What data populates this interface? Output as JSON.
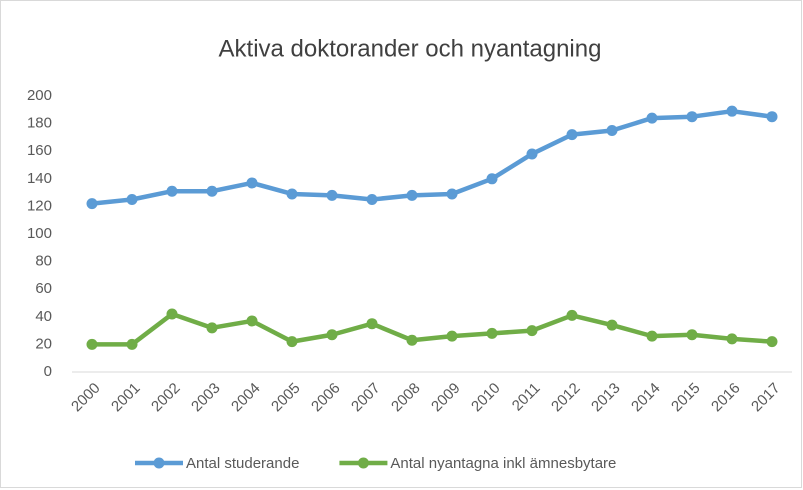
{
  "chart_data": {
    "type": "line",
    "title": "Aktiva doktorander och nyantagning",
    "categories": [
      "2000",
      "2001",
      "2002",
      "2003",
      "2004",
      "2005",
      "2006",
      "2007",
      "2008",
      "2009",
      "2010",
      "2011",
      "2012",
      "2013",
      "2014",
      "2015",
      "2016",
      "2017"
    ],
    "series": [
      {
        "name": "Antal studerande",
        "color": "#5b9bd5",
        "values": [
          122,
          125,
          131,
          131,
          137,
          129,
          128,
          125,
          128,
          129,
          140,
          158,
          172,
          175,
          184,
          185,
          189,
          185
        ]
      },
      {
        "name": "Antal nyantagna inkl ämnesbytare",
        "color": "#70ad47",
        "values": [
          20,
          20,
          42,
          32,
          37,
          22,
          27,
          35,
          23,
          26,
          28,
          30,
          41,
          34,
          26,
          27,
          24,
          22
        ]
      }
    ],
    "ylim": [
      0,
      200
    ],
    "yticks": [
      0,
      20,
      40,
      60,
      80,
      100,
      120,
      140,
      160,
      180,
      200
    ],
    "grid": false,
    "legend": "bottom"
  }
}
